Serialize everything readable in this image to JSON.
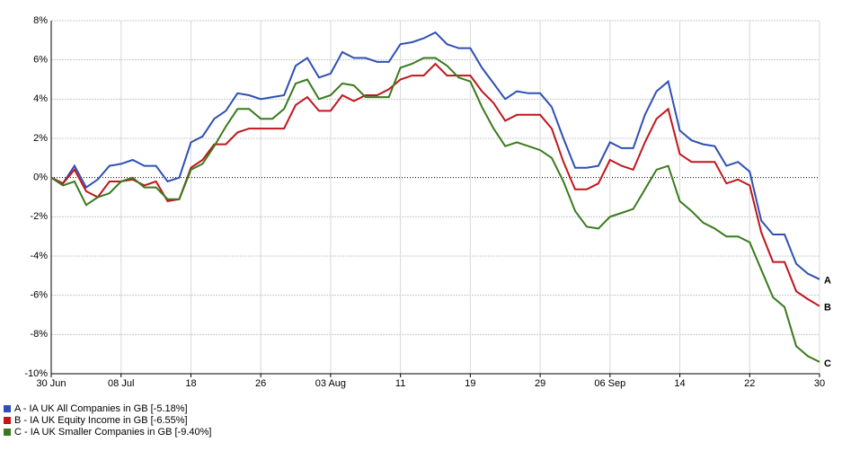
{
  "chart_data": {
    "type": "line",
    "categories": [
      "30 Jun",
      null,
      null,
      null,
      null,
      null,
      "08 Jul",
      null,
      null,
      null,
      null,
      null,
      "18",
      null,
      null,
      null,
      null,
      null,
      "26",
      null,
      null,
      null,
      null,
      null,
      "03 Aug",
      null,
      null,
      null,
      null,
      null,
      "11",
      null,
      null,
      null,
      null,
      null,
      "19",
      null,
      null,
      null,
      null,
      null,
      "29",
      null,
      null,
      null,
      null,
      null,
      "06 Sep",
      null,
      null,
      null,
      null,
      null,
      "14",
      null,
      null,
      null,
      null,
      null,
      "22",
      null,
      null,
      null,
      null,
      null,
      "30"
    ],
    "series": [
      {
        "name": "A - IA UK All Companies in GB [-5.18%]",
        "end_label": "A",
        "color": "#2e50b4",
        "values": [
          0,
          -0.3,
          0.6,
          -0.5,
          -0.1,
          0.6,
          0.7,
          0.9,
          0.6,
          0.6,
          -0.2,
          0,
          1.8,
          2.1,
          3.0,
          3.4,
          4.3,
          4.2,
          4.0,
          4.1,
          4.2,
          5.7,
          6.1,
          5.1,
          5.3,
          6.4,
          6.1,
          6.1,
          5.9,
          5.9,
          6.8,
          6.9,
          7.1,
          7.4,
          6.8,
          6.6,
          6.6,
          5.6,
          4.8,
          4.0,
          4.4,
          4.3,
          4.3,
          3.6,
          2.0,
          0.5,
          0.5,
          0.6,
          1.8,
          1.5,
          1.5,
          3.2,
          4.4,
          4.9,
          2.4,
          1.9,
          1.7,
          1.6,
          0.6,
          0.8,
          0.3,
          -2.2,
          -2.9,
          -2.9,
          -4.4,
          -4.9,
          -5.18
        ]
      },
      {
        "name": "B - IA UK Equity Income in GB [-6.55%]",
        "end_label": "B",
        "color": "#c0161c",
        "values": [
          0,
          -0.3,
          0.4,
          -0.7,
          -1.0,
          -0.2,
          -0.2,
          -0.1,
          -0.4,
          -0.2,
          -1.2,
          -1.1,
          0.5,
          0.9,
          1.7,
          1.7,
          2.3,
          2.5,
          2.5,
          2.5,
          2.5,
          3.7,
          4.1,
          3.4,
          3.4,
          4.2,
          3.9,
          4.2,
          4.2,
          4.5,
          5.0,
          5.2,
          5.2,
          5.8,
          5.2,
          5.2,
          5.2,
          4.4,
          3.8,
          2.9,
          3.2,
          3.2,
          3.2,
          2.5,
          0.8,
          -0.6,
          -0.6,
          -0.3,
          0.9,
          0.6,
          0.4,
          1.8,
          3.0,
          3.5,
          1.2,
          0.8,
          0.8,
          0.8,
          -0.3,
          -0.1,
          -0.4,
          -2.8,
          -4.3,
          -4.3,
          -5.8,
          -6.2,
          -6.55
        ]
      },
      {
        "name": "C - IA UK Smaller Companies in GB [-9.40%]",
        "end_label": "C",
        "color": "#3a7a1e",
        "values": [
          0,
          -0.4,
          -0.2,
          -1.4,
          -1.0,
          -0.8,
          -0.2,
          0,
          -0.5,
          -0.5,
          -1.1,
          -1.1,
          0.4,
          0.7,
          1.6,
          2.6,
          3.5,
          3.5,
          3.0,
          3.0,
          3.5,
          4.8,
          5.0,
          4.0,
          4.2,
          4.8,
          4.7,
          4.1,
          4.1,
          4.1,
          5.6,
          5.8,
          6.1,
          6.1,
          5.7,
          5.1,
          4.9,
          3.6,
          2.5,
          1.6,
          1.8,
          1.6,
          1.4,
          1.0,
          -0.2,
          -1.7,
          -2.5,
          -2.6,
          -2.0,
          -1.8,
          -1.6,
          -0.6,
          0.4,
          0.6,
          -1.2,
          -1.7,
          -2.3,
          -2.6,
          -3.0,
          -3.0,
          -3.3,
          -4.7,
          -6.1,
          -6.6,
          -8.6,
          -9.1,
          -9.4
        ]
      }
    ],
    "ylim": [
      -10,
      8
    ],
    "yticks": [
      {
        "value": -10,
        "label": "-10%"
      },
      {
        "value": -8,
        "label": "-8%"
      },
      {
        "value": -6,
        "label": "-6%"
      },
      {
        "value": -4,
        "label": "-4%"
      },
      {
        "value": -2,
        "label": "-2%"
      },
      {
        "value": 0,
        "label": "0%"
      },
      {
        "value": 2,
        "label": "2%"
      },
      {
        "value": 4,
        "label": "4%"
      },
      {
        "value": 6,
        "label": "6%"
      },
      {
        "value": 8,
        "label": "8%"
      }
    ],
    "grid": true
  }
}
